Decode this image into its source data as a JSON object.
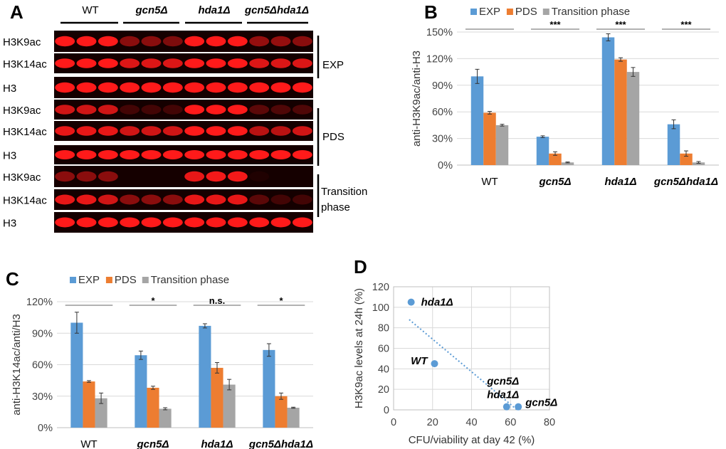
{
  "panels": {
    "a": "A",
    "b": "B",
    "c": "C",
    "d": "D"
  },
  "colors": {
    "exp": "#5b9bd5",
    "pds": "#ed7d31",
    "transition": "#a5a5a5",
    "blot_band": "#ff1a1a",
    "blot_bg": "#150000"
  },
  "blot": {
    "strains": [
      "WT",
      "gcn5Δ",
      "hda1Δ",
      "gcn5Δhda1Δ"
    ],
    "strain_italic": [
      false,
      true,
      true,
      true
    ],
    "rows": [
      {
        "label": "H3K9ac",
        "intensity": [
          1.0,
          1.0,
          1.0,
          0.5,
          0.5,
          0.45,
          1.0,
          1.0,
          1.0,
          0.55,
          0.55,
          0.5
        ]
      },
      {
        "label": "H3K14ac",
        "intensity": [
          1.0,
          1.0,
          1.0,
          0.85,
          0.85,
          0.85,
          1.0,
          1.0,
          1.0,
          0.85,
          0.85,
          0.85
        ]
      },
      {
        "label": "H3",
        "intensity": [
          1.0,
          1.0,
          1.0,
          1.0,
          1.0,
          1.0,
          1.0,
          1.0,
          1.0,
          1.0,
          1.0,
          1.0
        ]
      },
      {
        "label": "H3K9ac",
        "intensity": [
          0.8,
          0.8,
          0.8,
          0.2,
          0.2,
          0.2,
          1.0,
          1.0,
          1.0,
          0.3,
          0.25,
          0.25
        ]
      },
      {
        "label": "H3K14ac",
        "intensity": [
          0.9,
          0.9,
          0.9,
          0.8,
          0.8,
          0.8,
          1.0,
          1.0,
          1.0,
          0.7,
          0.7,
          0.8
        ]
      },
      {
        "label": "H3",
        "intensity": [
          1.0,
          1.0,
          1.0,
          1.0,
          1.0,
          1.0,
          1.0,
          1.0,
          1.0,
          1.0,
          1.0,
          1.0
        ]
      },
      {
        "label": "H3K9ac",
        "intensity": [
          0.5,
          0.5,
          0.5,
          0.0,
          0.0,
          0.0,
          0.9,
          0.95,
          0.95,
          0.05,
          0.0,
          0.0
        ]
      },
      {
        "label": "H3K14ac",
        "intensity": [
          0.9,
          0.9,
          0.8,
          0.5,
          0.5,
          0.5,
          0.9,
          0.9,
          0.9,
          0.3,
          0.2,
          0.2
        ]
      },
      {
        "label": "H3",
        "intensity": [
          1.0,
          1.0,
          1.0,
          1.0,
          1.0,
          1.0,
          1.0,
          1.0,
          1.0,
          1.0,
          1.0,
          1.0
        ]
      }
    ],
    "groups": [
      {
        "line1": "EXP",
        "line2": ""
      },
      {
        "line1": "PDS",
        "line2": ""
      },
      {
        "line1": "Transition",
        "line2": "phase"
      }
    ]
  },
  "chart_data": [
    {
      "type": "bar",
      "title": "",
      "ylabel": "anti-H3K9ac/anti-H3",
      "xlabel": "",
      "ylim": [
        0,
        150
      ],
      "yticks": [
        "0%",
        "30%",
        "60%",
        "90%",
        "120%",
        "150%"
      ],
      "categories": [
        "WT",
        "gcn5Δ",
        "hda1Δ",
        "gcn5Δhda1Δ"
      ],
      "category_italic": [
        false,
        true,
        true,
        true
      ],
      "series": [
        {
          "name": "EXP",
          "values": [
            100,
            32,
            144,
            46
          ],
          "errors": [
            8,
            1,
            4,
            5
          ]
        },
        {
          "name": "PDS",
          "values": [
            59,
            13,
            119,
            13
          ],
          "errors": [
            1.5,
            2,
            2,
            3
          ]
        },
        {
          "name": "Transition phase",
          "values": [
            45,
            3,
            105,
            3
          ],
          "errors": [
            1,
            0.5,
            5,
            1
          ]
        }
      ],
      "significance": [
        "",
        "***",
        "***",
        "***"
      ]
    },
    {
      "type": "bar",
      "title": "",
      "ylabel": "anti-H3K14ac/anti/H3",
      "xlabel": "",
      "ylim": [
        0,
        120
      ],
      "yticks": [
        "0%",
        "30%",
        "60%",
        "90%",
        "120%"
      ],
      "categories": [
        "WT",
        "gcn5Δ",
        "hda1Δ",
        "gcn5Δhda1Δ"
      ],
      "category_italic": [
        false,
        true,
        true,
        true
      ],
      "series": [
        {
          "name": "EXP",
          "values": [
            100,
            69,
            97,
            74
          ],
          "errors": [
            10,
            4,
            2,
            6
          ]
        },
        {
          "name": "PDS",
          "values": [
            44,
            38,
            57,
            30
          ],
          "errors": [
            0.8,
            1.5,
            5,
            3
          ]
        },
        {
          "name": "Transition phase",
          "values": [
            28,
            18,
            41,
            19
          ],
          "errors": [
            5,
            1,
            5,
            0.5
          ]
        }
      ],
      "significance": [
        "",
        "*",
        "n.s.",
        "*"
      ]
    },
    {
      "type": "scatter",
      "title": "",
      "xlabel": "CFU/viability at day 42 (%)",
      "ylabel": "H3K9ac levels at 24h (%)",
      "xlim": [
        0,
        80
      ],
      "ylim": [
        0,
        120
      ],
      "xticks": [
        "0",
        "20",
        "40",
        "60",
        "80"
      ],
      "yticks": [
        "0",
        "20",
        "40",
        "60",
        "80",
        "100",
        "120"
      ],
      "points": [
        {
          "label": "hda1Δ",
          "x": 9,
          "y": 105
        },
        {
          "label": "WT",
          "x": 21,
          "y": 45
        },
        {
          "label": "gcn5Δ hda1Δ",
          "x": 58,
          "y": 3
        },
        {
          "label": "gcn5Δ",
          "x": 64,
          "y": 3
        }
      ],
      "trendline": {
        "x": [
          8,
          64
        ],
        "y": [
          88,
          -1
        ]
      }
    }
  ]
}
